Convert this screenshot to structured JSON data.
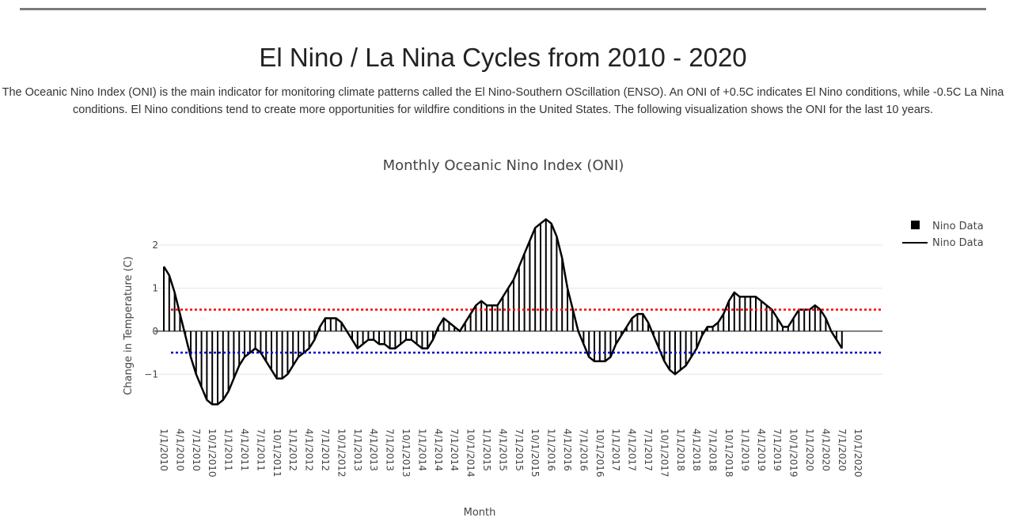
{
  "page": {
    "title": "El Nino / La Nina Cycles from 2010 - 2020",
    "description": "The Oceanic Nino Index (ONI) is the main indicator for monitoring climate patterns called the El Nino-Southern OScillation (ENSO). An ONI of +0.5C indicates El Nino conditions, while -0.5C La Nina conditions. El Nino conditions tend to create more opportunities for wildfire conditions in the United States. The following visualization shows the ONI for the last 10 years."
  },
  "chart_data": {
    "type": "bar",
    "title": "Monthly Oceanic Nino Index (ONI)",
    "xlabel": "Month",
    "ylabel": "Change in Temperature (C)",
    "ylim": [
      -1.95,
      2.55
    ],
    "yticks": [
      2,
      1,
      0,
      -1
    ],
    "ytick_labels": [
      "2",
      "1",
      "0",
      "−1"
    ],
    "x_tick_labels": [
      "1/1/2010",
      "4/1/2010",
      "7/1/2010",
      "10/1/2010",
      "1/1/2011",
      "4/1/2011",
      "7/1/2011",
      "10/1/2011",
      "1/1/2012",
      "4/1/2012",
      "7/1/2012",
      "10/1/2012",
      "1/1/2013",
      "4/1/2013",
      "7/1/2013",
      "10/1/2013",
      "1/1/2014",
      "4/1/2014",
      "7/1/2014",
      "10/1/2014",
      "1/1/2015",
      "4/1/2015",
      "7/1/2015",
      "10/1/2015",
      "1/1/2016",
      "4/1/2016",
      "7/1/2016",
      "10/1/2016",
      "1/1/2017",
      "4/1/2017",
      "7/1/2017",
      "10/1/2017",
      "1/1/2018",
      "4/1/2018",
      "7/1/2018",
      "10/1/2018",
      "1/1/2019",
      "4/1/2019",
      "7/1/2019",
      "10/1/2019",
      "1/1/2020",
      "4/1/2020",
      "7/1/2020",
      "10/1/2020"
    ],
    "reference_lines": [
      {
        "value": 0.5,
        "color": "#ff0000",
        "style": "dotted"
      },
      {
        "value": -0.5,
        "color": "#0000cc",
        "style": "dotted"
      }
    ],
    "legend": [
      "Nino Data",
      "Nino Data"
    ],
    "legend_position": "top-right",
    "values": [
      1.5,
      1.3,
      0.9,
      0.4,
      -0.1,
      -0.6,
      -1.0,
      -1.3,
      -1.6,
      -1.7,
      -1.7,
      -1.6,
      -1.4,
      -1.1,
      -0.8,
      -0.6,
      -0.5,
      -0.4,
      -0.5,
      -0.7,
      -0.9,
      -1.1,
      -1.1,
      -1.0,
      -0.8,
      -0.6,
      -0.5,
      -0.4,
      -0.2,
      0.1,
      0.3,
      0.3,
      0.3,
      0.2,
      0.0,
      -0.2,
      -0.4,
      -0.3,
      -0.2,
      -0.2,
      -0.3,
      -0.3,
      -0.4,
      -0.4,
      -0.3,
      -0.2,
      -0.2,
      -0.3,
      -0.4,
      -0.4,
      -0.2,
      0.1,
      0.3,
      0.2,
      0.1,
      0.0,
      0.2,
      0.4,
      0.6,
      0.7,
      0.6,
      0.6,
      0.6,
      0.8,
      1.0,
      1.2,
      1.5,
      1.8,
      2.1,
      2.4,
      2.5,
      2.6,
      2.5,
      2.2,
      1.7,
      1.0,
      0.5,
      0.0,
      -0.3,
      -0.6,
      -0.7,
      -0.7,
      -0.7,
      -0.6,
      -0.3,
      -0.1,
      0.1,
      0.3,
      0.4,
      0.4,
      0.2,
      -0.1,
      -0.4,
      -0.7,
      -0.9,
      -1.0,
      -0.9,
      -0.8,
      -0.6,
      -0.4,
      -0.1,
      0.1,
      0.1,
      0.2,
      0.4,
      0.7,
      0.9,
      0.8,
      0.8,
      0.8,
      0.8,
      0.7,
      0.6,
      0.5,
      0.3,
      0.1,
      0.1,
      0.3,
      0.5,
      0.5,
      0.5,
      0.6,
      0.5,
      0.3,
      0.0,
      -0.2,
      -0.4
    ]
  }
}
